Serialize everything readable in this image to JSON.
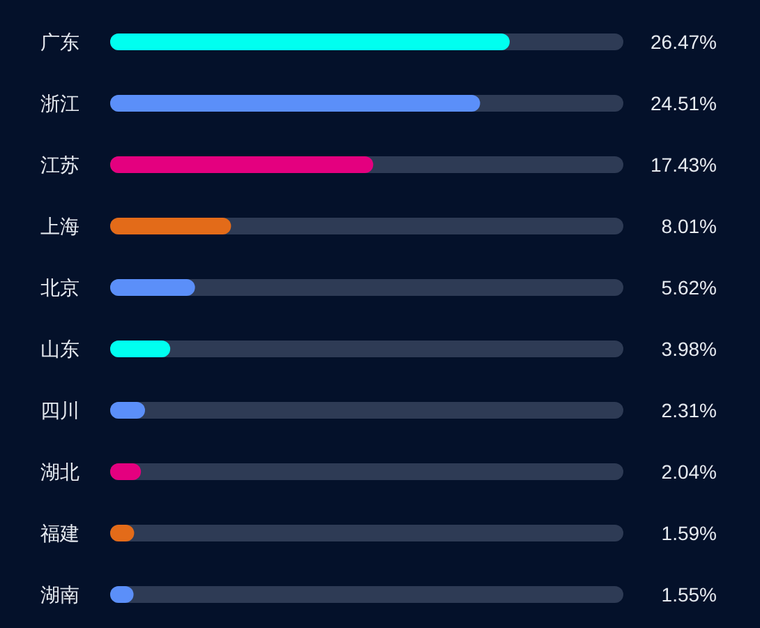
{
  "chart_data": {
    "type": "bar",
    "orientation": "horizontal",
    "tick_labels": "y",
    "categories": [
      "广东",
      "浙江",
      "江苏",
      "上海",
      "北京",
      "山东",
      "四川",
      "湖北",
      "福建",
      "湖南"
    ],
    "values": [
      26.47,
      24.51,
      17.43,
      8.01,
      5.62,
      3.98,
      2.31,
      2.04,
      1.59,
      1.55
    ],
    "colors": [
      "#00fff0",
      "#5b8ff9",
      "#e4007f",
      "#e36b19",
      "#5b8ff9",
      "#00fff0",
      "#5b8ff9",
      "#e4007f",
      "#e36b19",
      "#5b8ff9"
    ],
    "value_labels": [
      "26.47%",
      "24.51%",
      "17.43%",
      "8.01%",
      "5.62%",
      "3.98%",
      "2.31%",
      "2.04%",
      "1.59%",
      "1.55%"
    ],
    "xlim": [
      0,
      34
    ]
  }
}
